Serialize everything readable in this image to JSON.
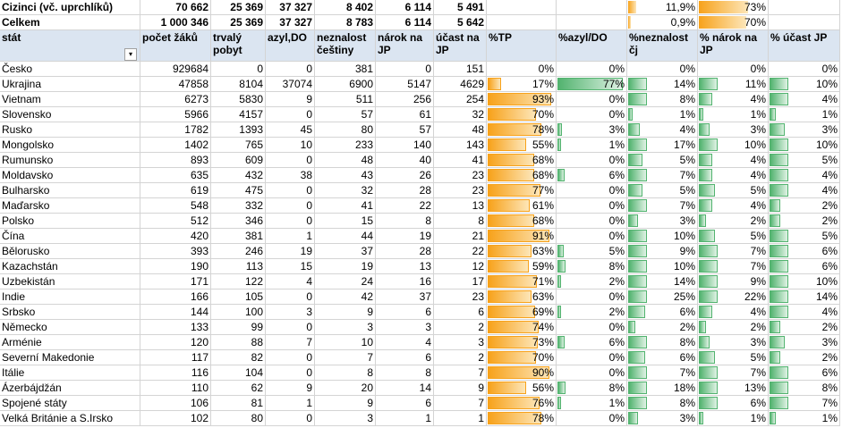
{
  "colors": {
    "header_bg": "#dbe5f1",
    "bar_tp": "#f7a21b",
    "bar_other": "#52b36f",
    "grid": "#d4d4d4"
  },
  "icons": {
    "filter": "filter-dropdown-icon"
  },
  "summary": [
    {
      "stat": "Cizinci (vč. uprchlíků)",
      "zaku": "70 662",
      "tp": "25 369",
      "azyl": "37 327",
      "neznalost": "8 402",
      "narok": "6 114",
      "ucast": "5 491",
      "p_tp": "",
      "p_azyl": "",
      "p_nez": "11,9%",
      "p_narok": "73%",
      "p_ucast": "",
      "v_nez": 0.119,
      "v_narok": 0.73
    },
    {
      "stat": "Celkem",
      "zaku": "1 000 346",
      "tp": "25 369",
      "azyl": "37 327",
      "neznalost": "8 783",
      "narok": "6 114",
      "ucast": "5 642",
      "p_tp": "",
      "p_azyl": "",
      "p_nez": "0,9%",
      "p_narok": "70%",
      "p_ucast": "",
      "v_nez": 0.009,
      "v_narok": 0.7
    }
  ],
  "headers": {
    "stat": "stát",
    "zaku": "počet žáků",
    "tp": "trvalý pobyt",
    "azyl": "azyl,DO",
    "neznalost": "neznalost češtiny",
    "narok": "nárok na JP",
    "ucast": "účast na JP",
    "p_tp": "%TP",
    "p_azyl": "%azyl/DO",
    "p_nez": "%neznalost čj",
    "p_narok": "% nárok na JP",
    "p_ucast": "% účast JP"
  },
  "rows": [
    {
      "stat": "Česko",
      "zaku": "929684",
      "tp": "0",
      "azyl": "0",
      "neznalost": "381",
      "narok": "0",
      "ucast": "151",
      "p_tp": "0%",
      "p_azyl": "0%",
      "p_nez": "0%",
      "p_narok": "0%",
      "p_ucast": "0%"
    },
    {
      "stat": "Ukrajina",
      "zaku": "47858",
      "tp": "8104",
      "azyl": "37074",
      "neznalost": "6900",
      "narok": "5147",
      "ucast": "4629",
      "p_tp": "17%",
      "p_azyl": "77%",
      "p_nez": "14%",
      "p_narok": "11%",
      "p_ucast": "10%"
    },
    {
      "stat": "Vietnam",
      "zaku": "6273",
      "tp": "5830",
      "azyl": "9",
      "neznalost": "511",
      "narok": "256",
      "ucast": "254",
      "p_tp": "93%",
      "p_azyl": "0%",
      "p_nez": "8%",
      "p_narok": "4%",
      "p_ucast": "4%"
    },
    {
      "stat": "Slovensko",
      "zaku": "5966",
      "tp": "4157",
      "azyl": "0",
      "neznalost": "57",
      "narok": "61",
      "ucast": "32",
      "p_tp": "70%",
      "p_azyl": "0%",
      "p_nez": "1%",
      "p_narok": "1%",
      "p_ucast": "1%"
    },
    {
      "stat": "Rusko",
      "zaku": "1782",
      "tp": "1393",
      "azyl": "45",
      "neznalost": "80",
      "narok": "57",
      "ucast": "48",
      "p_tp": "78%",
      "p_azyl": "3%",
      "p_nez": "4%",
      "p_narok": "3%",
      "p_ucast": "3%"
    },
    {
      "stat": "Mongolsko",
      "zaku": "1402",
      "tp": "765",
      "azyl": "10",
      "neznalost": "233",
      "narok": "140",
      "ucast": "143",
      "p_tp": "55%",
      "p_azyl": "1%",
      "p_nez": "17%",
      "p_narok": "10%",
      "p_ucast": "10%"
    },
    {
      "stat": "Rumunsko",
      "zaku": "893",
      "tp": "609",
      "azyl": "0",
      "neznalost": "48",
      "narok": "40",
      "ucast": "41",
      "p_tp": "68%",
      "p_azyl": "0%",
      "p_nez": "5%",
      "p_narok": "4%",
      "p_ucast": "5%"
    },
    {
      "stat": "Moldavsko",
      "zaku": "635",
      "tp": "432",
      "azyl": "38",
      "neznalost": "43",
      "narok": "26",
      "ucast": "23",
      "p_tp": "68%",
      "p_azyl": "6%",
      "p_nez": "7%",
      "p_narok": "4%",
      "p_ucast": "4%"
    },
    {
      "stat": "Bulharsko",
      "zaku": "619",
      "tp": "475",
      "azyl": "0",
      "neznalost": "32",
      "narok": "28",
      "ucast": "23",
      "p_tp": "77%",
      "p_azyl": "0%",
      "p_nez": "5%",
      "p_narok": "5%",
      "p_ucast": "4%"
    },
    {
      "stat": "Maďarsko",
      "zaku": "548",
      "tp": "332",
      "azyl": "0",
      "neznalost": "41",
      "narok": "22",
      "ucast": "13",
      "p_tp": "61%",
      "p_azyl": "0%",
      "p_nez": "7%",
      "p_narok": "4%",
      "p_ucast": "2%"
    },
    {
      "stat": "Polsko",
      "zaku": "512",
      "tp": "346",
      "azyl": "0",
      "neznalost": "15",
      "narok": "8",
      "ucast": "8",
      "p_tp": "68%",
      "p_azyl": "0%",
      "p_nez": "3%",
      "p_narok": "2%",
      "p_ucast": "2%"
    },
    {
      "stat": "Čína",
      "zaku": "420",
      "tp": "381",
      "azyl": "1",
      "neznalost": "44",
      "narok": "19",
      "ucast": "21",
      "p_tp": "91%",
      "p_azyl": "0%",
      "p_nez": "10%",
      "p_narok": "5%",
      "p_ucast": "5%"
    },
    {
      "stat": "Bělorusko",
      "zaku": "393",
      "tp": "246",
      "azyl": "19",
      "neznalost": "37",
      "narok": "28",
      "ucast": "22",
      "p_tp": "63%",
      "p_azyl": "5%",
      "p_nez": "9%",
      "p_narok": "7%",
      "p_ucast": "6%"
    },
    {
      "stat": "Kazachstán",
      "zaku": "190",
      "tp": "113",
      "azyl": "15",
      "neznalost": "19",
      "narok": "13",
      "ucast": "12",
      "p_tp": "59%",
      "p_azyl": "8%",
      "p_nez": "10%",
      "p_narok": "7%",
      "p_ucast": "6%"
    },
    {
      "stat": "Uzbekistán",
      "zaku": "171",
      "tp": "122",
      "azyl": "4",
      "neznalost": "24",
      "narok": "16",
      "ucast": "17",
      "p_tp": "71%",
      "p_azyl": "2%",
      "p_nez": "14%",
      "p_narok": "9%",
      "p_ucast": "10%"
    },
    {
      "stat": "Indie",
      "zaku": "166",
      "tp": "105",
      "azyl": "0",
      "neznalost": "42",
      "narok": "37",
      "ucast": "23",
      "p_tp": "63%",
      "p_azyl": "0%",
      "p_nez": "25%",
      "p_narok": "22%",
      "p_ucast": "14%"
    },
    {
      "stat": "Srbsko",
      "zaku": "144",
      "tp": "100",
      "azyl": "3",
      "neznalost": "9",
      "narok": "6",
      "ucast": "6",
      "p_tp": "69%",
      "p_azyl": "2%",
      "p_nez": "6%",
      "p_narok": "4%",
      "p_ucast": "4%"
    },
    {
      "stat": "Německo",
      "zaku": "133",
      "tp": "99",
      "azyl": "0",
      "neznalost": "3",
      "narok": "3",
      "ucast": "2",
      "p_tp": "74%",
      "p_azyl": "0%",
      "p_nez": "2%",
      "p_narok": "2%",
      "p_ucast": "2%"
    },
    {
      "stat": "Arménie",
      "zaku": "120",
      "tp": "88",
      "azyl": "7",
      "neznalost": "10",
      "narok": "4",
      "ucast": "3",
      "p_tp": "73%",
      "p_azyl": "6%",
      "p_nez": "8%",
      "p_narok": "3%",
      "p_ucast": "3%"
    },
    {
      "stat": "Severní Makedonie",
      "zaku": "117",
      "tp": "82",
      "azyl": "0",
      "neznalost": "7",
      "narok": "6",
      "ucast": "2",
      "p_tp": "70%",
      "p_azyl": "0%",
      "p_nez": "6%",
      "p_narok": "5%",
      "p_ucast": "2%"
    },
    {
      "stat": "Itálie",
      "zaku": "116",
      "tp": "104",
      "azyl": "0",
      "neznalost": "8",
      "narok": "8",
      "ucast": "7",
      "p_tp": "90%",
      "p_azyl": "0%",
      "p_nez": "7%",
      "p_narok": "7%",
      "p_ucast": "6%"
    },
    {
      "stat": "Ázerbájdžán",
      "zaku": "110",
      "tp": "62",
      "azyl": "9",
      "neznalost": "20",
      "narok": "14",
      "ucast": "9",
      "p_tp": "56%",
      "p_azyl": "8%",
      "p_nez": "18%",
      "p_narok": "13%",
      "p_ucast": "8%"
    },
    {
      "stat": "Spojené státy",
      "zaku": "106",
      "tp": "81",
      "azyl": "1",
      "neznalost": "9",
      "narok": "6",
      "ucast": "7",
      "p_tp": "76%",
      "p_azyl": "1%",
      "p_nez": "8%",
      "p_narok": "6%",
      "p_ucast": "7%"
    },
    {
      "stat": "Velká Británie a S.Irsko",
      "zaku": "102",
      "tp": "80",
      "azyl": "0",
      "neznalost": "3",
      "narok": "1",
      "ucast": "1",
      "p_tp": "78%",
      "p_azyl": "0%",
      "p_nez": "3%",
      "p_narok": "1%",
      "p_ucast": "1%"
    }
  ]
}
